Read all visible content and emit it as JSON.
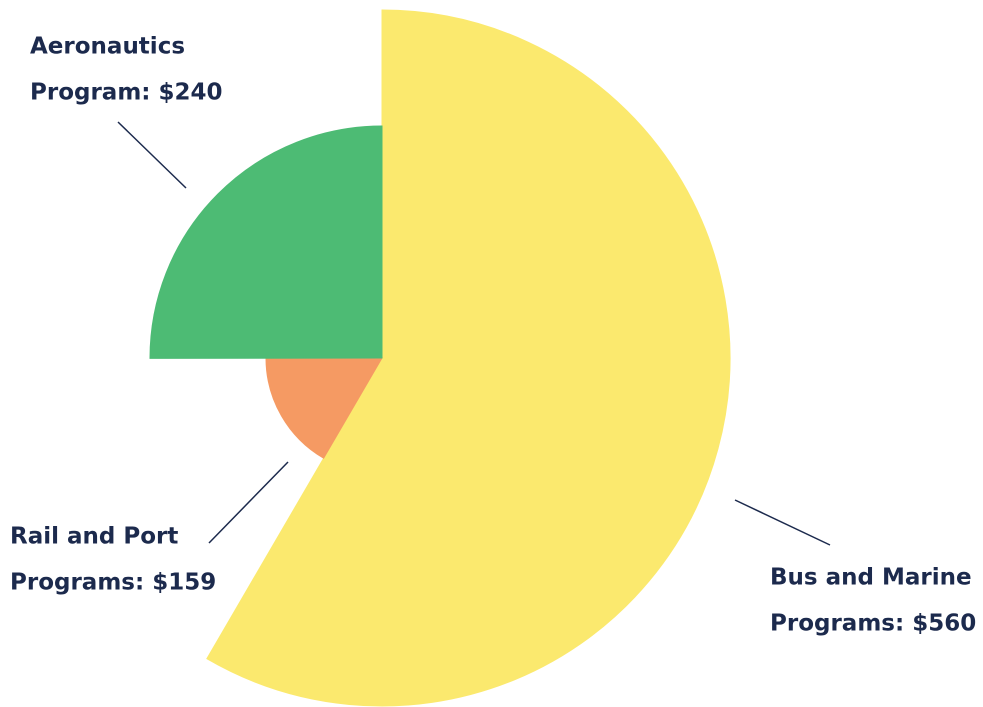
{
  "chart_data": {
    "type": "pie",
    "categories": [
      [
        "Bus and Marine",
        "Programs: $560"
      ],
      [
        "Rail and Port",
        "Programs: $159"
      ],
      [
        "Aeronautics",
        "Program: $240"
      ]
    ],
    "values": [
      560,
      159,
      240
    ],
    "colors": [
      "#fbe96e",
      "#f59a63",
      "#4dbb74"
    ]
  }
}
